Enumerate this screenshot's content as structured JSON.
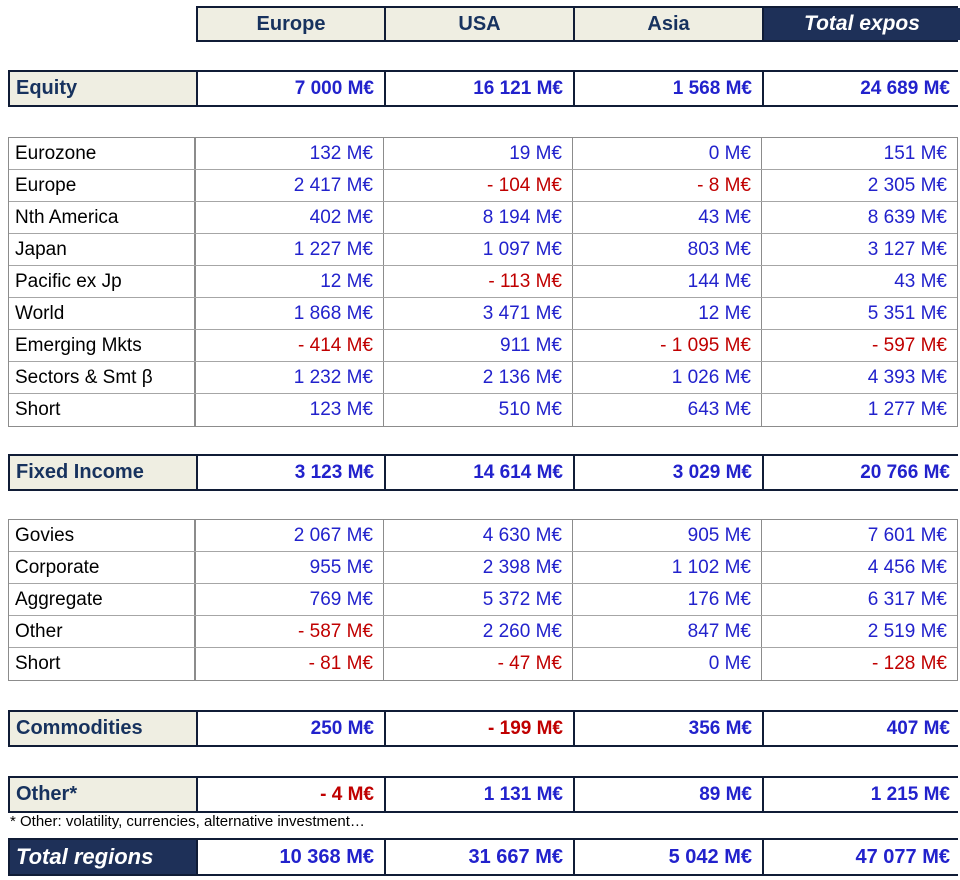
{
  "colors": {
    "navy_fill": "#1e3058",
    "navy_text": "#17325e",
    "positive_value": "#2222cc",
    "negative_value": "#c00000",
    "label_background": "#efeee2",
    "grid_border": "#8c8c8c"
  },
  "header": {
    "columns": [
      {
        "label": "Europe"
      },
      {
        "label": "USA"
      },
      {
        "label": "Asia"
      },
      {
        "label": "Total expos"
      }
    ]
  },
  "blocks": [
    {
      "type": "section",
      "label": "Equity",
      "values": [
        "7 000 M€",
        "16 121 M€",
        "1 568 M€",
        "24 689 M€"
      ]
    },
    {
      "type": "detail",
      "rows": [
        {
          "label": "Eurozone",
          "values": [
            "132 M€",
            "19 M€",
            "0 M€",
            "151 M€"
          ]
        },
        {
          "label": "Europe",
          "values": [
            "2 417 M€",
            "- 104 M€",
            "- 8 M€",
            "2 305 M€"
          ]
        },
        {
          "label": "Nth America",
          "values": [
            "402 M€",
            "8 194 M€",
            "43 M€",
            "8 639 M€"
          ]
        },
        {
          "label": "Japan",
          "values": [
            "1 227 M€",
            "1 097 M€",
            "803 M€",
            "3 127 M€"
          ]
        },
        {
          "label": "Pacific ex Jp",
          "values": [
            "12 M€",
            "- 113 M€",
            "144 M€",
            "43 M€"
          ]
        },
        {
          "label": "World",
          "values": [
            "1 868 M€",
            "3 471 M€",
            "12 M€",
            "5 351 M€"
          ]
        },
        {
          "label": "Emerging Mkts",
          "values": [
            "- 414 M€",
            "911 M€",
            "- 1 095 M€",
            "- 597 M€"
          ]
        },
        {
          "label": "Sectors & Smt β",
          "values": [
            "1 232 M€",
            "2 136 M€",
            "1 026 M€",
            "4 393 M€"
          ]
        },
        {
          "label": "Short",
          "values": [
            "123 M€",
            "510 M€",
            "643 M€",
            "1 277 M€"
          ]
        }
      ]
    },
    {
      "type": "section",
      "label": "Fixed Income",
      "values": [
        "3 123 M€",
        "14 614 M€",
        "3 029 M€",
        "20 766 M€"
      ]
    },
    {
      "type": "detail",
      "rows": [
        {
          "label": "Govies",
          "values": [
            "2 067 M€",
            "4 630 M€",
            "905 M€",
            "7 601 M€"
          ]
        },
        {
          "label": "Corporate",
          "values": [
            "955 M€",
            "2 398 M€",
            "1 102 M€",
            "4 456 M€"
          ]
        },
        {
          "label": "Aggregate",
          "values": [
            "769 M€",
            "5 372 M€",
            "176 M€",
            "6 317 M€"
          ]
        },
        {
          "label": "Other",
          "values": [
            "- 587 M€",
            "2 260 M€",
            "847 M€",
            "2 519 M€"
          ]
        },
        {
          "label": "Short",
          "values": [
            "- 81 M€",
            "- 47 M€",
            "0 M€",
            "- 128 M€"
          ]
        }
      ]
    },
    {
      "type": "section",
      "label": "Commodities",
      "values": [
        "250 M€",
        "- 199 M€",
        "356 M€",
        "407 M€"
      ]
    },
    {
      "type": "section",
      "label": "Other*",
      "values": [
        "- 4 M€",
        "1 131 M€",
        "89 M€",
        "1 215 M€"
      ]
    },
    {
      "type": "section",
      "variant": "total",
      "label": "Total regions",
      "values": [
        "10 368 M€",
        "31 667 M€",
        "5 042 M€",
        "47 077 M€"
      ]
    }
  ],
  "footnote": "* Other: volatility, currencies, alternative investment…"
}
